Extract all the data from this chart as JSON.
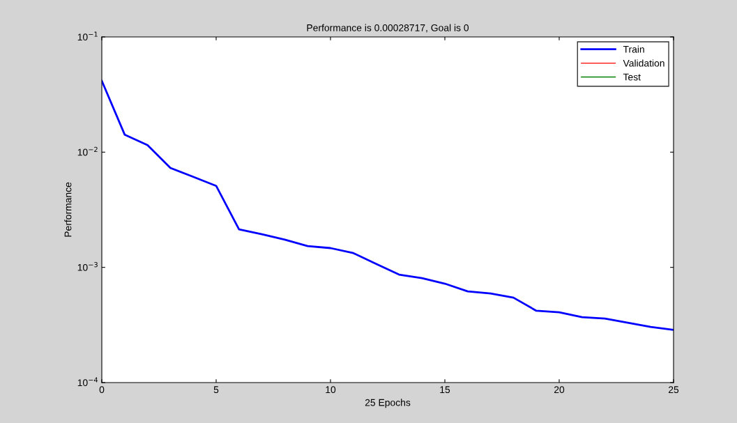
{
  "chart_data": {
    "type": "line",
    "title": "Performance is 0.00028717, Goal is 0",
    "xlabel": "25 Epochs",
    "ylabel": "Performance",
    "x": [
      0,
      1,
      2,
      3,
      4,
      5,
      6,
      7,
      8,
      9,
      10,
      11,
      12,
      13,
      14,
      15,
      16,
      17,
      18,
      19,
      20,
      21,
      22,
      23,
      24,
      25
    ],
    "series": [
      {
        "name": "Train",
        "color": "#0000ff",
        "values": [
          0.0416,
          0.0142,
          0.0115,
          0.0073,
          0.0061,
          0.0051,
          0.00214,
          0.00194,
          0.00174,
          0.00153,
          0.00147,
          0.00133,
          0.00107,
          0.000865,
          0.000807,
          0.000722,
          0.000619,
          0.000594,
          0.000546,
          0.00042,
          0.000408,
          0.00037,
          0.00036,
          0.000331,
          0.000304,
          0.000287
        ]
      },
      {
        "name": "Validation",
        "color": "#ff0000",
        "values": [
          null,
          null,
          null,
          null,
          null,
          null,
          null,
          null,
          null,
          null,
          null,
          null,
          null,
          null,
          null,
          null,
          null,
          null,
          null,
          null,
          null,
          null,
          null,
          null,
          null,
          null
        ]
      },
      {
        "name": "Test",
        "color": "#008000",
        "values": [
          null,
          null,
          null,
          null,
          null,
          null,
          null,
          null,
          null,
          null,
          null,
          null,
          null,
          null,
          null,
          null,
          null,
          null,
          null,
          null,
          null,
          null,
          null,
          null,
          null,
          null
        ]
      }
    ],
    "log": "y",
    "xlim": [
      0,
      25
    ],
    "xticks": [
      0,
      5,
      10,
      15,
      20,
      25
    ],
    "ylim": [
      0.0001,
      0.1
    ],
    "yticks": [
      {
        "value": 0.0001,
        "label": "10$^{−4}$"
      },
      {
        "value": 0.001,
        "label": "10$^{−3}$"
      },
      {
        "value": 0.01,
        "label": "10$^{−2}$"
      },
      {
        "value": 0.1,
        "label": "10$^{−1}$"
      }
    ],
    "grid": false,
    "legend": "top right",
    "line_style": "solid",
    "marker": "none"
  }
}
